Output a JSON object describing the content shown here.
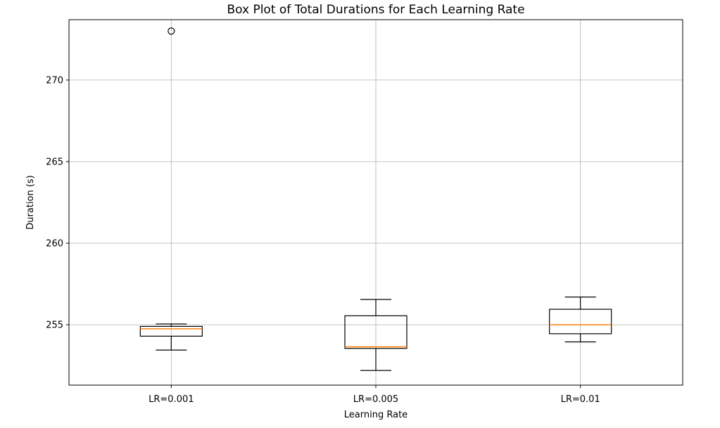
{
  "chart_data": {
    "type": "box",
    "title": "Box Plot of Total Durations for Each Learning Rate",
    "xlabel": "Learning Rate",
    "ylabel": "Duration (s)",
    "categories": [
      "LR=0.001",
      "LR=0.005",
      "LR=0.01"
    ],
    "ylim": [
      251.3,
      273.7
    ],
    "yticks": [
      255,
      260,
      265,
      270
    ],
    "ytick_labels": [
      "255",
      "260",
      "265",
      "270"
    ],
    "grid": true,
    "boxes": [
      {
        "label": "LR=0.001",
        "whisker_low": 253.45,
        "q1": 254.3,
        "median": 254.75,
        "q3": 254.9,
        "whisker_high": 255.05,
        "outliers": [
          273.0
        ]
      },
      {
        "label": "LR=0.005",
        "whisker_low": 252.2,
        "q1": 253.55,
        "median": 253.65,
        "q3": 255.55,
        "whisker_high": 256.55,
        "outliers": []
      },
      {
        "label": "LR=0.01",
        "whisker_low": 253.95,
        "q1": 254.45,
        "median": 255.0,
        "q3": 255.95,
        "whisker_high": 256.7,
        "outliers": []
      }
    ],
    "colors": {
      "box": "#000000",
      "median": "#ff7f0e",
      "grid": "#b0b0b0"
    }
  }
}
